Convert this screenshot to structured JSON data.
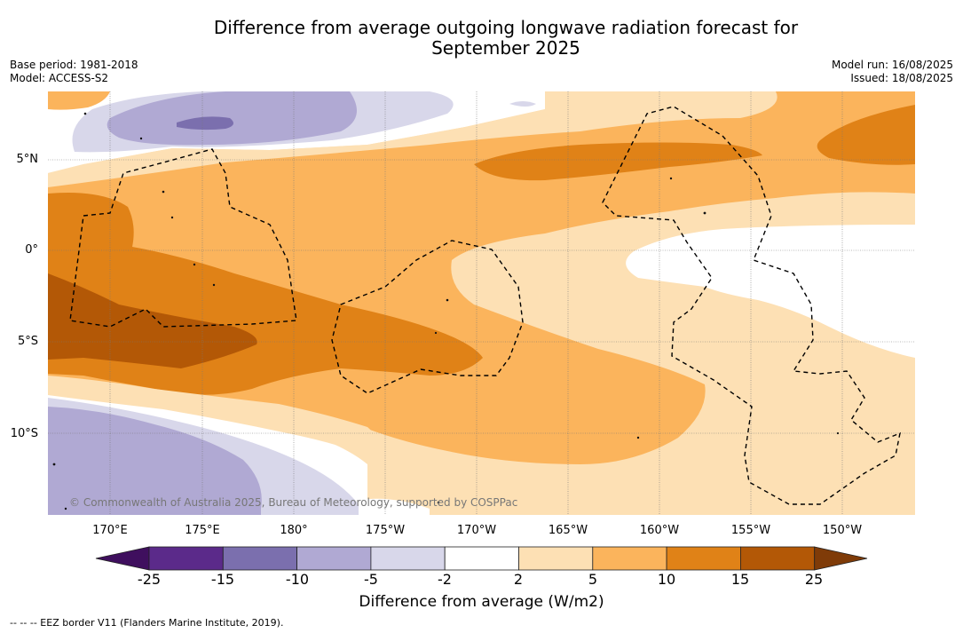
{
  "header": {
    "title_line1": "Difference from average outgoing longwave radiation forecast for",
    "title_line2": "September 2025",
    "base_period": "Base period: 1981-2018",
    "model": "Model: ACCESS-S2",
    "model_run": "Model run: 16/08/2025",
    "issued": "Issued: 18/08/2025"
  },
  "map": {
    "lat_labels": [
      "5°N",
      "0°",
      "5°S",
      "10°S"
    ],
    "lon_labels": [
      "170°E",
      "175°E",
      "180°",
      "175°W",
      "170°W",
      "165°W",
      "160°W",
      "155°W",
      "150°W"
    ],
    "copyright": "© Commonwealth of Australia 2025, Bureau of Meteorology, supported by COSPPac",
    "contour_colors": {
      "n25": "#3f0f5e",
      "n15": "#5b2a8a",
      "n10": "#7b6fae",
      "n5": "#b0a9d3",
      "n2": "#d8d7ea",
      "zero": "#ffffff",
      "p2": "#fde0b4",
      "p5": "#fbb45c",
      "p10": "#e08217",
      "p15": "#b35806",
      "p25": "#7f3b08"
    }
  },
  "colorbar": {
    "ticks": [
      "-25",
      "-15",
      "-10",
      "-5",
      "-2",
      "2",
      "5",
      "10",
      "15",
      "25"
    ],
    "label": "Difference from average (W/m2)"
  },
  "footer": {
    "eez_note": "--  --  -- EEZ border V11 (Flanders Marine Institute, 2019)."
  }
}
